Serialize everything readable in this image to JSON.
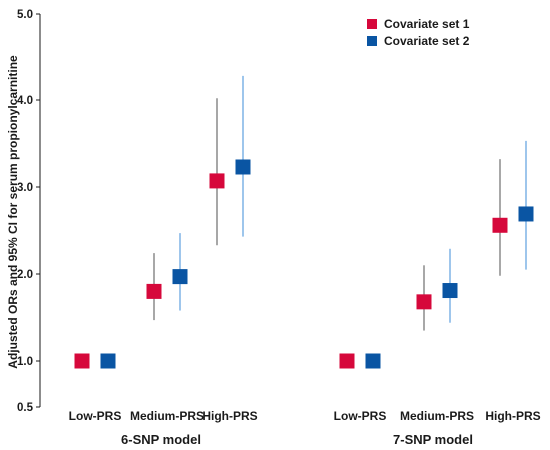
{
  "chart_data": {
    "type": "scatter",
    "title": "",
    "ylabel": "Adjusted ORs and 95% CI for serum propionylcarnitine",
    "xlabel": "",
    "ylim": [
      0.5,
      5.0
    ],
    "y_ticks": [
      "5.0",
      "4.0",
      "3.0",
      "2.0",
      "1.0",
      "0.5"
    ],
    "y_tick_values": [
      5.0,
      4.0,
      3.0,
      2.0,
      1.0,
      0.5
    ],
    "grid": false,
    "legend_placement": "top-right",
    "groups": [
      "6-SNP model",
      "7-SNP model"
    ],
    "categories": [
      "Low-PRS",
      "Medium-PRS",
      "High-PRS"
    ],
    "series": [
      {
        "name": "Covariate set 1",
        "color": "#d6083b",
        "whisker_color": "#8a8a8a",
        "marker": "square",
        "points": [
          {
            "group": "6-SNP model",
            "category": "Low-PRS",
            "or": 1.0,
            "ci": null
          },
          {
            "group": "6-SNP model",
            "category": "Medium-PRS",
            "or": 1.8,
            "ci": [
              1.47,
              2.24
            ]
          },
          {
            "group": "6-SNP model",
            "category": "High-PRS",
            "or": 3.07,
            "ci": [
              2.33,
              4.02
            ]
          },
          {
            "group": "7-SNP model",
            "category": "Low-PRS",
            "or": 1.0,
            "ci": null
          },
          {
            "group": "7-SNP model",
            "category": "Medium-PRS",
            "or": 1.68,
            "ci": [
              1.35,
              2.1
            ]
          },
          {
            "group": "7-SNP model",
            "category": "High-PRS",
            "or": 2.56,
            "ci": [
              1.98,
              3.32
            ]
          }
        ]
      },
      {
        "name": "Covariate set 2",
        "color": "#0a55a3",
        "whisker_color": "#7fb3e6",
        "marker": "square",
        "points": [
          {
            "group": "6-SNP model",
            "category": "Low-PRS",
            "or": 1.0,
            "ci": null
          },
          {
            "group": "6-SNP model",
            "category": "Medium-PRS",
            "or": 1.97,
            "ci": [
              1.58,
              2.47
            ]
          },
          {
            "group": "6-SNP model",
            "category": "High-PRS",
            "or": 3.23,
            "ci": [
              2.43,
              4.28
            ]
          },
          {
            "group": "7-SNP model",
            "category": "Low-PRS",
            "or": 1.0,
            "ci": null
          },
          {
            "group": "7-SNP model",
            "category": "Medium-PRS",
            "or": 1.81,
            "ci": [
              1.44,
              2.29
            ]
          },
          {
            "group": "7-SNP model",
            "category": "High-PRS",
            "or": 2.69,
            "ci": [
              2.05,
              3.53
            ]
          }
        ]
      }
    ]
  }
}
